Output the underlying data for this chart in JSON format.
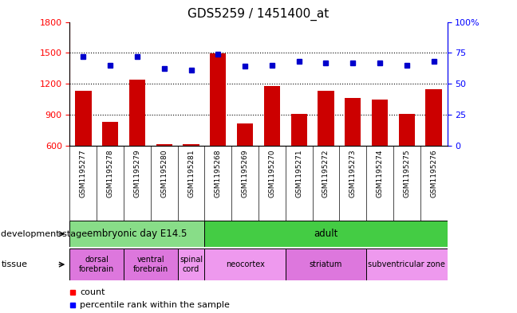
{
  "title": "GDS5259 / 1451400_at",
  "samples": [
    "GSM1195277",
    "GSM1195278",
    "GSM1195279",
    "GSM1195280",
    "GSM1195281",
    "GSM1195268",
    "GSM1195269",
    "GSM1195270",
    "GSM1195271",
    "GSM1195272",
    "GSM1195273",
    "GSM1195274",
    "GSM1195275",
    "GSM1195276"
  ],
  "counts": [
    1130,
    830,
    1240,
    610,
    615,
    1495,
    815,
    1175,
    905,
    1130,
    1060,
    1045,
    905,
    1145
  ],
  "percentiles": [
    72,
    65,
    72,
    62,
    61,
    74,
    64,
    65,
    68,
    67,
    67,
    67,
    65,
    68
  ],
  "ylim_left": [
    600,
    1800
  ],
  "ylim_right": [
    0,
    100
  ],
  "yticks_left": [
    600,
    900,
    1200,
    1500,
    1800
  ],
  "yticks_right": [
    0,
    25,
    50,
    75,
    100
  ],
  "bar_color": "#cc0000",
  "dot_color": "#0000cc",
  "background_color": "#ffffff",
  "gray_bg": "#d8d8d8",
  "dev_stage_groups": [
    {
      "label": "embryonic day E14.5",
      "start": 0,
      "end": 4,
      "color": "#88dd88"
    },
    {
      "label": "adult",
      "start": 5,
      "end": 13,
      "color": "#44cc44"
    }
  ],
  "tissue_groups": [
    {
      "label": "dorsal\nforebrain",
      "start": 0,
      "end": 1,
      "color": "#dd77dd"
    },
    {
      "label": "ventral\nforebrain",
      "start": 2,
      "end": 3,
      "color": "#dd77dd"
    },
    {
      "label": "spinal\ncord",
      "start": 4,
      "end": 4,
      "color": "#ee99ee"
    },
    {
      "label": "neocortex",
      "start": 5,
      "end": 7,
      "color": "#ee99ee"
    },
    {
      "label": "striatum",
      "start": 8,
      "end": 10,
      "color": "#dd77dd"
    },
    {
      "label": "subventricular zone",
      "start": 11,
      "end": 13,
      "color": "#ee99ee"
    }
  ]
}
